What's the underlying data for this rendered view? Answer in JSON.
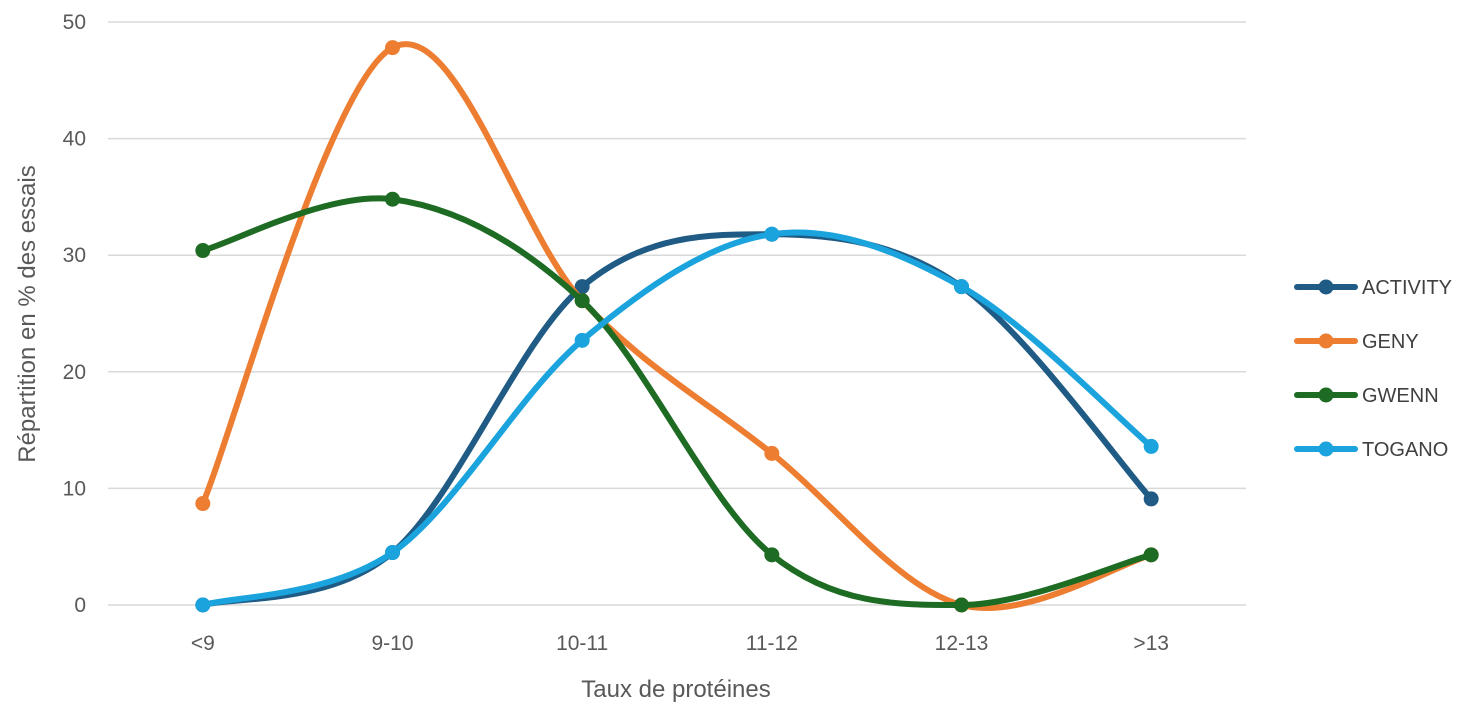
{
  "chart_data": {
    "type": "line",
    "smooth": true,
    "title": "",
    "xlabel": "Taux de protéines",
    "ylabel": "Répartition en % des essais",
    "categories": [
      "<9",
      "9-10",
      "10-11",
      "11-12",
      "12-13",
      ">13"
    ],
    "ylim": [
      0,
      50
    ],
    "yticks": [
      0,
      10,
      20,
      30,
      40,
      50
    ],
    "grid": true,
    "legend_position": "right",
    "series": [
      {
        "name": "ACTIVITY",
        "color": "#1f5b84",
        "values": [
          0,
          4.5,
          27.3,
          31.8,
          27.3,
          9.1
        ]
      },
      {
        "name": "GENY",
        "color": "#ed7d31",
        "values": [
          8.7,
          47.8,
          26.1,
          13.0,
          0,
          4.3
        ]
      },
      {
        "name": "GWENN",
        "color": "#1e6b23",
        "values": [
          30.4,
          34.8,
          26.1,
          4.3,
          0,
          4.3
        ]
      },
      {
        "name": "TOGANO",
        "color": "#1aa3dc",
        "values": [
          0,
          4.5,
          22.7,
          31.8,
          27.3,
          13.6
        ]
      }
    ]
  }
}
